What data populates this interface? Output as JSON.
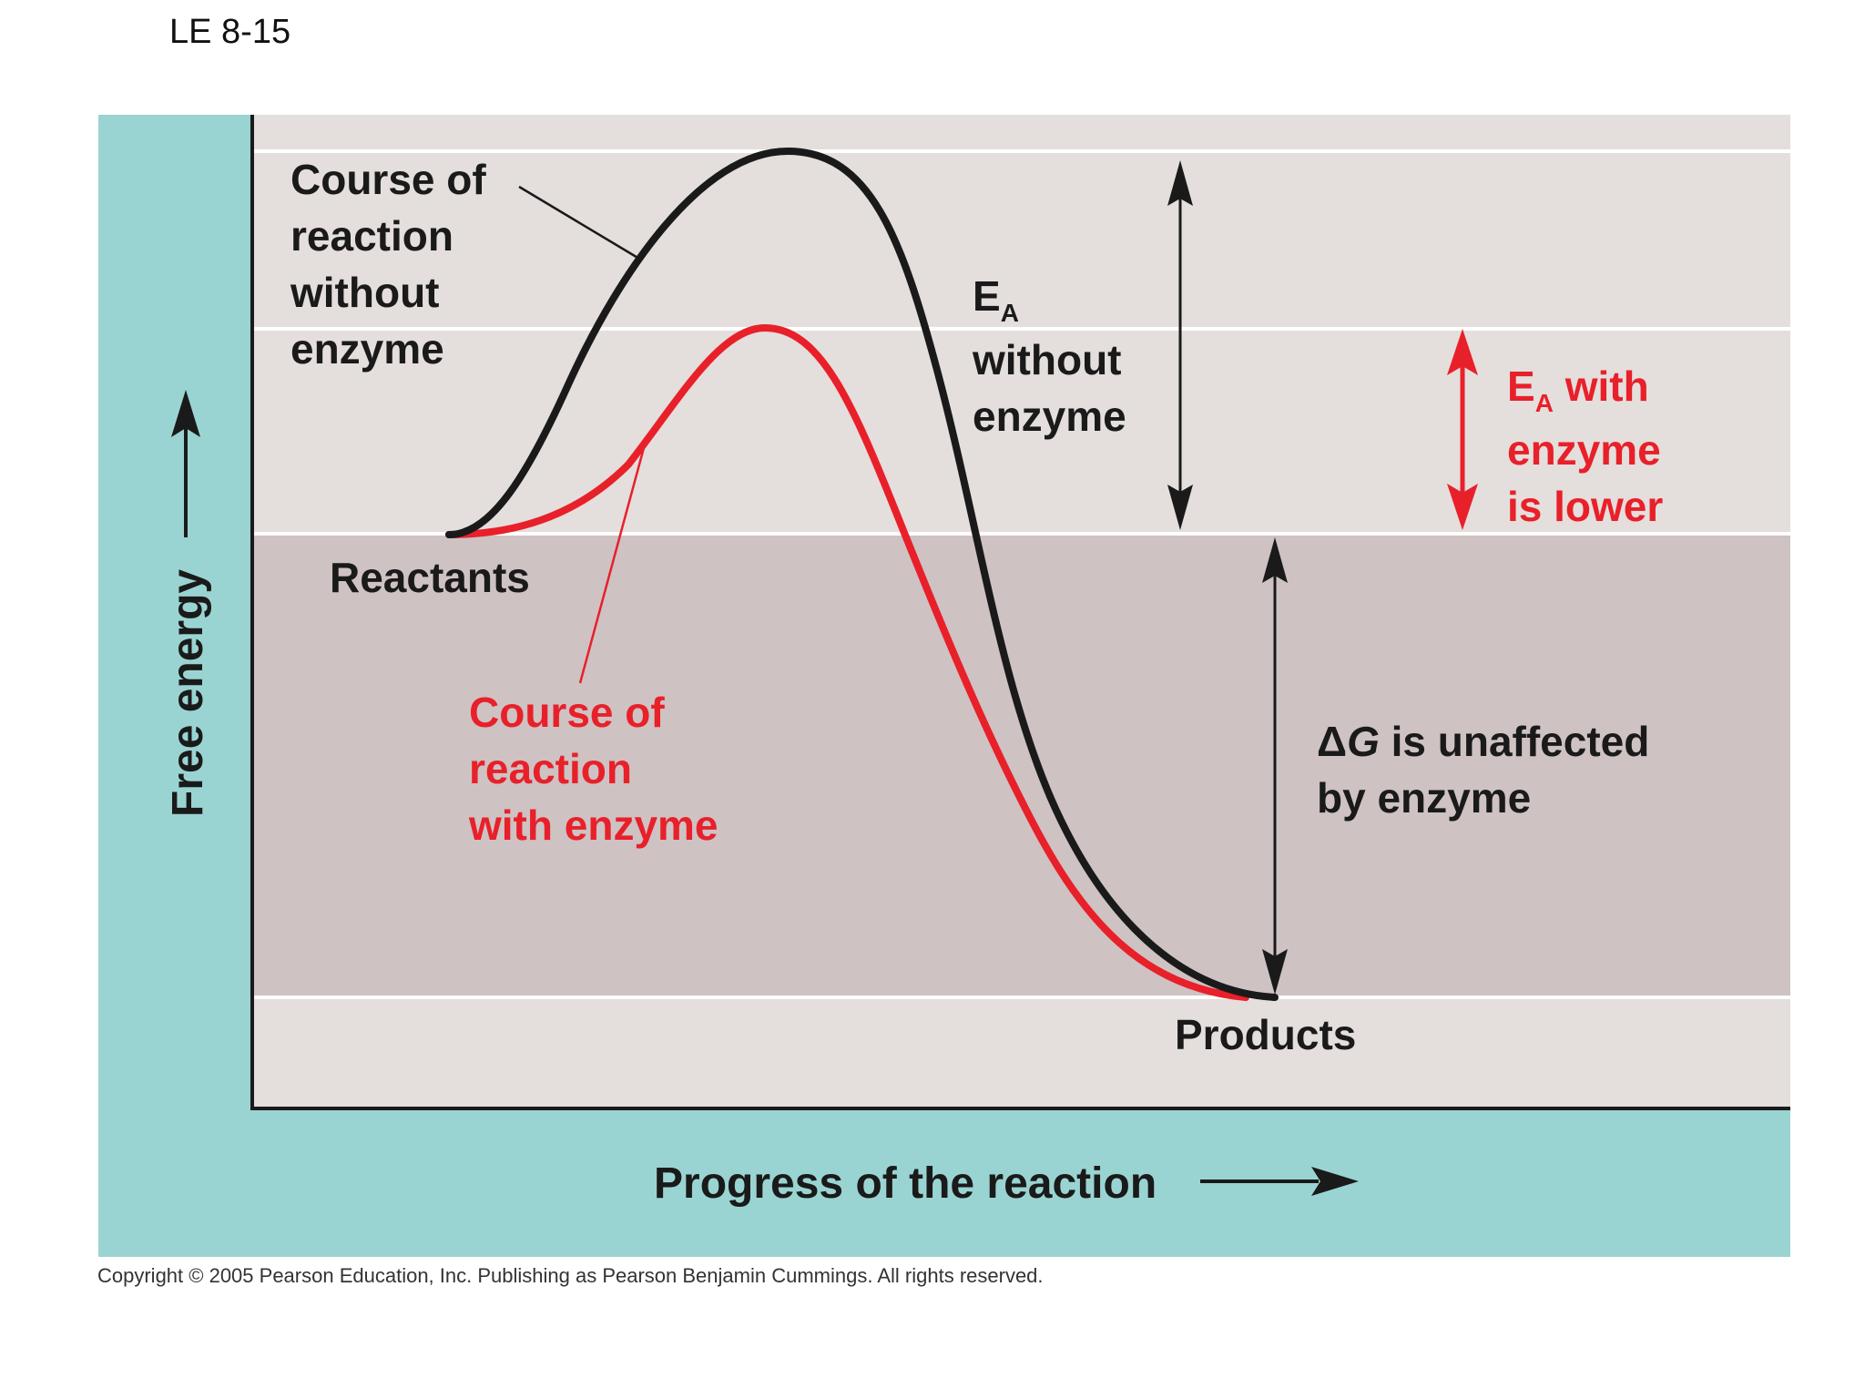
{
  "figure_label": "LE 8-15",
  "labels": {
    "course_without": [
      "Course of",
      "reaction",
      "without",
      "enzyme"
    ],
    "ea_without": {
      "main": "E",
      "sub": "A",
      "rest": [
        "without",
        "enzyme"
      ]
    },
    "ea_with": {
      "main": "E",
      "sub": "A",
      "suffix": " with",
      "rest": [
        "enzyme",
        "is lower"
      ]
    },
    "reactants": "Reactants",
    "course_with": [
      "Course of",
      "reaction",
      "with enzyme"
    ],
    "delta_g": {
      "symbol": "Δ",
      "var": "G",
      "line1_rest": " is unaffected",
      "line2": "by enzyme"
    },
    "products": "Products",
    "x_axis": "Progress of the reaction",
    "y_axis": "Free energy"
  },
  "copyright": "Copyright © 2005 Pearson Education, Inc. Publishing as Pearson Benjamin Cummings. All rights reserved.",
  "colors": {
    "teal_frame": "#9AD4D2",
    "light_band": "#E4DEDC",
    "dark_band": "#CEC2C3",
    "without_enzyme": "#1a1a1a",
    "with_enzyme": "#E8202A"
  }
}
